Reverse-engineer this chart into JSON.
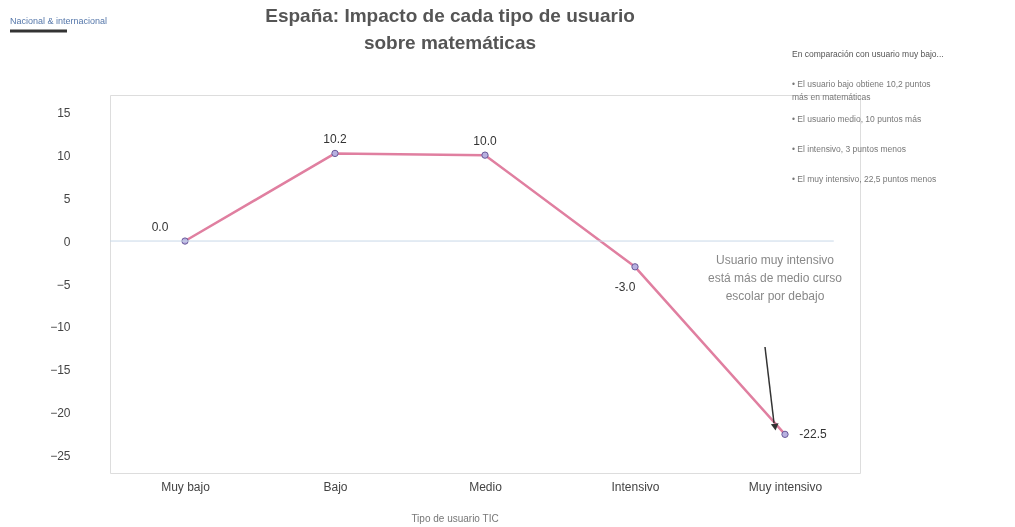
{
  "chart_data": {
    "type": "line",
    "title": [
      "España: Impacto de cada tipo de usuario",
      "sobre matemáticas"
    ],
    "xlabel": "Tipo de usuario TIC",
    "categories": [
      "Muy bajo",
      "Bajo",
      "Medio",
      "Intensivo",
      "Muy intensivo"
    ],
    "series": [
      {
        "color": "#e07fa0",
        "values": [
          0.0,
          10.2,
          10.0,
          -3.0,
          -22.5
        ],
        "value_labels": [
          "0.0",
          "10.2",
          "10.0",
          "-3.0",
          "-22.5"
        ]
      }
    ],
    "marker": "circle",
    "ylim": [
      -27,
      17
    ],
    "yticks": [
      -25,
      -20,
      -15,
      -10,
      -5,
      0,
      5,
      10,
      15
    ],
    "ref_lines": [
      {
        "axis": "y",
        "value": 0
      }
    ],
    "annotations": [
      "Nacional & internacional",
      "En comparación con usuario muy bajo...",
      "• El usuario bajo obtiene 10,2 puntos\n   más en matemáticas",
      "• El usuario medio, 10 puntos más",
      "• El intensivo, 3 puntos menos",
      "• El muy intensivo, 22,5 puntos menos",
      "Usuario muy intensivo\nestá más de medio curso\nescolar por debajo"
    ]
  }
}
